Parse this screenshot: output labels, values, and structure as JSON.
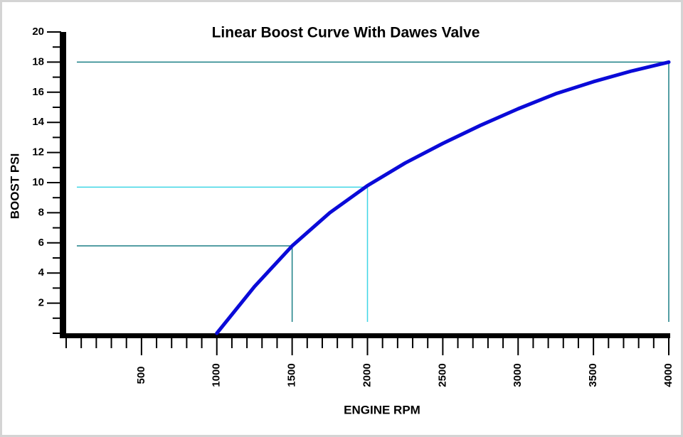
{
  "chart_data": {
    "type": "line",
    "title": "Linear Boost Curve With Dawes Valve",
    "x_label": "ENGINE RPM",
    "y_label": "BOOST PSI",
    "x": [
      1000,
      1250,
      1500,
      1750,
      2000,
      2250,
      2500,
      2750,
      3000,
      3250,
      3500,
      3750,
      4000
    ],
    "series": [
      {
        "name": "Boost",
        "color": "#0a0ad8",
        "values": [
          0,
          3.1,
          5.8,
          8.0,
          9.8,
          11.3,
          12.6,
          13.8,
          14.9,
          15.9,
          16.7,
          17.4,
          18
        ]
      }
    ],
    "reference_lines": [
      {
        "x": 1500,
        "y": 5.8,
        "color": "#1b7f86"
      },
      {
        "x": 2000,
        "y": 9.7,
        "color": "#3fd6e6"
      },
      {
        "x": 4000,
        "y": 18,
        "color": "#1b7f86"
      }
    ],
    "xlim": [
      0,
      4000
    ],
    "ylim": [
      0,
      20
    ],
    "xticks": [
      500,
      1000,
      1500,
      2000,
      2500,
      3000,
      3500,
      4000
    ],
    "yticks": [
      2,
      4,
      6,
      8,
      10,
      12,
      14,
      16,
      18,
      20
    ],
    "x_minor_ticks": [
      0,
      100,
      200,
      300,
      400,
      600,
      700,
      800,
      900,
      1100,
      1200,
      1300,
      1400,
      1600,
      1700,
      1800,
      1900,
      2100,
      2200,
      2300,
      2400,
      2600,
      2700,
      2800,
      2900,
      3100,
      3200,
      3300,
      3400,
      3600,
      3700,
      3800,
      3900
    ],
    "y_minor_ticks": [
      0,
      1,
      3,
      5,
      7,
      9,
      11,
      13,
      15,
      17,
      19
    ],
    "title_color": "#7a1414"
  }
}
